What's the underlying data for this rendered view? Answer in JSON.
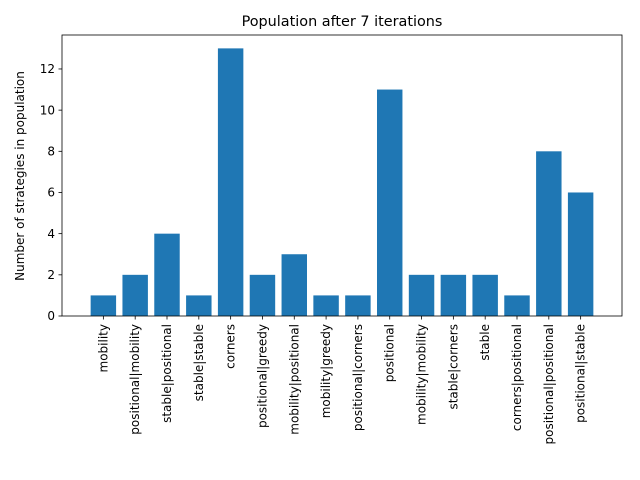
{
  "chart_data": {
    "type": "bar",
    "title": "Population after 7 iterations",
    "xlabel": "",
    "ylabel": "Number of strategies in population",
    "categories": [
      "mobility",
      "positional|mobility",
      "stable|positional",
      "stable|stable",
      "corners",
      "positional|greedy",
      "mobility|positional",
      "mobility|greedy",
      "positional|corners",
      "positional",
      "mobility|mobility",
      "stable|corners",
      "stable",
      "corners|positional",
      "positional|positional",
      "positional|stable"
    ],
    "values": [
      1,
      2,
      4,
      1,
      13,
      2,
      3,
      1,
      1,
      11,
      2,
      2,
      2,
      1,
      8,
      6
    ],
    "ylim": [
      0,
      13.65
    ],
    "yticks": [
      0,
      2,
      4,
      6,
      8,
      10,
      12
    ],
    "bar_color": "#1f77b4",
    "grid": false
  }
}
